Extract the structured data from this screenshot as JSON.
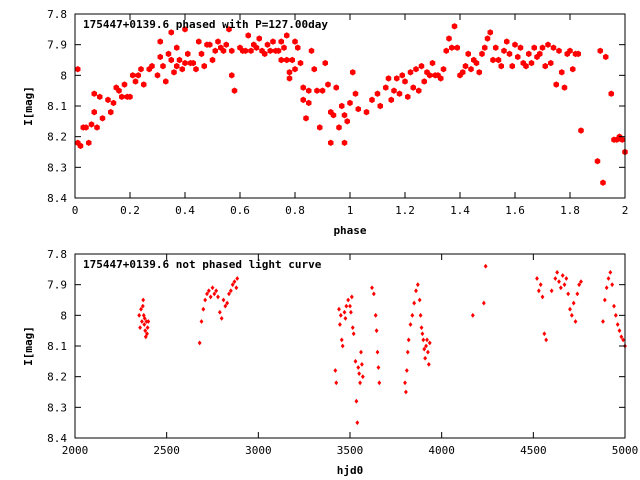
{
  "chart_data": [
    {
      "type": "scatter",
      "title": "175447+0139.6 phased with P=127.00day",
      "xlabel": "phase",
      "ylabel": "I[mag]",
      "xlim": [
        0,
        2
      ],
      "ylim": [
        7.8,
        8.4
      ],
      "y_inverted": true,
      "x_ticks": [
        "0",
        "0.2",
        "0.4",
        "0.6",
        "0.8",
        "1",
        "1.2",
        "1.4",
        "1.6",
        "1.8",
        "2"
      ],
      "y_ticks": [
        "7.8",
        "7.9",
        "8",
        "8.1",
        "8.2",
        "8.3",
        "8.4"
      ],
      "marker_color": "#ff0000",
      "marker": "filled-hexagon",
      "points": [
        [
          0.01,
          8.22
        ],
        [
          0.01,
          7.98
        ],
        [
          0.02,
          8.23
        ],
        [
          0.03,
          8.17
        ],
        [
          0.04,
          8.17
        ],
        [
          0.05,
          8.22
        ],
        [
          0.06,
          8.16
        ],
        [
          0.07,
          8.12
        ],
        [
          0.07,
          8.06
        ],
        [
          0.08,
          8.17
        ],
        [
          0.09,
          8.07
        ],
        [
          0.1,
          8.14
        ],
        [
          0.12,
          8.08
        ],
        [
          0.13,
          8.12
        ],
        [
          0.14,
          8.09
        ],
        [
          0.15,
          8.04
        ],
        [
          0.16,
          8.05
        ],
        [
          0.17,
          8.07
        ],
        [
          0.18,
          8.03
        ],
        [
          0.19,
          8.07
        ],
        [
          0.2,
          8.07
        ],
        [
          0.21,
          8.0
        ],
        [
          0.22,
          8.02
        ],
        [
          0.23,
          8.0
        ],
        [
          0.24,
          7.98
        ],
        [
          0.25,
          8.03
        ],
        [
          0.27,
          7.98
        ],
        [
          0.28,
          7.97
        ],
        [
          0.3,
          8.0
        ],
        [
          0.31,
          7.94
        ],
        [
          0.31,
          7.89
        ],
        [
          0.32,
          7.97
        ],
        [
          0.33,
          8.02
        ],
        [
          0.34,
          7.93
        ],
        [
          0.35,
          7.86
        ],
        [
          0.35,
          7.95
        ],
        [
          0.36,
          7.99
        ],
        [
          0.37,
          7.97
        ],
        [
          0.37,
          7.91
        ],
        [
          0.38,
          7.95
        ],
        [
          0.39,
          7.98
        ],
        [
          0.4,
          7.85
        ],
        [
          0.4,
          7.96
        ],
        [
          0.41,
          7.93
        ],
        [
          0.42,
          7.96
        ],
        [
          0.43,
          7.96
        ],
        [
          0.44,
          7.98
        ],
        [
          0.45,
          7.89
        ],
        [
          0.46,
          7.93
        ],
        [
          0.47,
          7.97
        ],
        [
          0.48,
          7.9
        ],
        [
          0.49,
          7.9
        ],
        [
          0.5,
          7.95
        ],
        [
          0.51,
          7.92
        ],
        [
          0.52,
          7.89
        ],
        [
          0.53,
          7.91
        ],
        [
          0.54,
          7.92
        ],
        [
          0.55,
          7.9
        ],
        [
          0.56,
          7.85
        ],
        [
          0.57,
          7.92
        ],
        [
          0.57,
          8.0
        ],
        [
          0.58,
          8.05
        ],
        [
          0.6,
          7.91
        ],
        [
          0.61,
          7.92
        ],
        [
          0.62,
          7.92
        ],
        [
          0.63,
          7.87
        ],
        [
          0.64,
          7.92
        ],
        [
          0.65,
          7.9
        ],
        [
          0.66,
          7.91
        ],
        [
          0.67,
          7.88
        ],
        [
          0.68,
          7.92
        ],
        [
          0.69,
          7.93
        ],
        [
          0.7,
          7.9
        ],
        [
          0.71,
          7.92
        ],
        [
          0.72,
          7.89
        ],
        [
          0.73,
          7.92
        ],
        [
          0.74,
          7.92
        ],
        [
          0.75,
          7.95
        ],
        [
          0.75,
          7.89
        ],
        [
          0.76,
          7.91
        ],
        [
          0.77,
          7.87
        ],
        [
          0.77,
          7.95
        ],
        [
          0.78,
          7.99
        ],
        [
          0.78,
          8.01
        ],
        [
          0.79,
          7.95
        ],
        [
          0.8,
          7.89
        ],
        [
          0.8,
          7.98
        ],
        [
          0.81,
          7.91
        ],
        [
          0.82,
          7.96
        ],
        [
          0.83,
          8.04
        ],
        [
          0.83,
          8.08
        ],
        [
          0.84,
          8.14
        ],
        [
          0.85,
          8.09
        ],
        [
          0.85,
          8.05
        ],
        [
          0.86,
          7.92
        ],
        [
          0.87,
          7.98
        ],
        [
          0.88,
          8.05
        ],
        [
          0.89,
          8.17
        ],
        [
          0.9,
          8.05
        ],
        [
          0.91,
          7.96
        ],
        [
          0.92,
          8.03
        ],
        [
          0.93,
          8.22
        ],
        [
          0.93,
          8.12
        ],
        [
          0.94,
          8.13
        ],
        [
          0.95,
          8.04
        ],
        [
          0.96,
          8.17
        ],
        [
          0.97,
          8.1
        ],
        [
          0.98,
          8.22
        ],
        [
          0.98,
          8.13
        ],
        [
          0.99,
          8.15
        ],
        [
          1.0,
          8.09
        ],
        [
          1.01,
          7.99
        ],
        [
          1.02,
          8.06
        ],
        [
          1.03,
          8.11
        ],
        [
          1.06,
          8.12
        ],
        [
          1.08,
          8.08
        ],
        [
          1.1,
          8.06
        ],
        [
          1.11,
          8.1
        ],
        [
          1.13,
          8.04
        ],
        [
          1.14,
          8.01
        ],
        [
          1.15,
          8.08
        ],
        [
          1.16,
          8.05
        ],
        [
          1.17,
          8.01
        ],
        [
          1.18,
          8.06
        ],
        [
          1.19,
          8.0
        ],
        [
          1.2,
          8.02
        ],
        [
          1.21,
          8.07
        ],
        [
          1.22,
          7.99
        ],
        [
          1.23,
          8.04
        ],
        [
          1.24,
          7.98
        ],
        [
          1.25,
          8.05
        ],
        [
          1.26,
          7.97
        ],
        [
          1.27,
          8.02
        ],
        [
          1.28,
          7.99
        ],
        [
          1.29,
          8.0
        ],
        [
          1.3,
          7.96
        ],
        [
          1.31,
          8.0
        ],
        [
          1.32,
          8.0
        ],
        [
          1.33,
          8.01
        ],
        [
          1.34,
          7.98
        ],
        [
          1.35,
          7.92
        ],
        [
          1.36,
          7.88
        ],
        [
          1.37,
          7.91
        ],
        [
          1.38,
          7.84
        ],
        [
          1.39,
          7.91
        ],
        [
          1.4,
          8.0
        ],
        [
          1.41,
          7.99
        ],
        [
          1.42,
          7.97
        ],
        [
          1.43,
          7.93
        ],
        [
          1.44,
          7.98
        ],
        [
          1.45,
          7.95
        ],
        [
          1.46,
          7.96
        ],
        [
          1.47,
          7.99
        ],
        [
          1.48,
          7.93
        ],
        [
          1.49,
          7.91
        ],
        [
          1.5,
          7.88
        ],
        [
          1.51,
          7.86
        ],
        [
          1.52,
          7.95
        ],
        [
          1.53,
          7.91
        ],
        [
          1.54,
          7.95
        ],
        [
          1.55,
          7.97
        ],
        [
          1.56,
          7.92
        ],
        [
          1.57,
          7.89
        ],
        [
          1.58,
          7.93
        ],
        [
          1.59,
          7.97
        ],
        [
          1.6,
          7.9
        ],
        [
          1.61,
          7.94
        ],
        [
          1.62,
          7.91
        ],
        [
          1.63,
          7.96
        ],
        [
          1.64,
          7.97
        ],
        [
          1.65,
          7.93
        ],
        [
          1.66,
          7.96
        ],
        [
          1.67,
          7.91
        ],
        [
          1.68,
          7.94
        ],
        [
          1.69,
          7.93
        ],
        [
          1.7,
          7.91
        ],
        [
          1.71,
          7.97
        ],
        [
          1.72,
          7.9
        ],
        [
          1.73,
          7.96
        ],
        [
          1.74,
          7.91
        ],
        [
          1.75,
          8.03
        ],
        [
          1.76,
          7.92
        ],
        [
          1.77,
          7.99
        ],
        [
          1.78,
          8.04
        ],
        [
          1.79,
          7.93
        ],
        [
          1.8,
          7.92
        ],
        [
          1.81,
          7.98
        ],
        [
          1.82,
          7.93
        ],
        [
          1.83,
          7.93
        ],
        [
          1.84,
          8.18
        ],
        [
          1.9,
          8.28
        ],
        [
          1.91,
          7.92
        ],
        [
          1.92,
          8.35
        ],
        [
          1.93,
          7.94
        ],
        [
          1.95,
          8.06
        ],
        [
          1.96,
          8.21
        ],
        [
          1.97,
          8.21
        ],
        [
          1.98,
          8.2
        ],
        [
          1.99,
          8.21
        ],
        [
          2.0,
          8.25
        ]
      ]
    },
    {
      "type": "scatter",
      "title": "175447+0139.6 not phased light curve",
      "xlabel": "hjd0",
      "ylabel": "I[mag]",
      "xlim": [
        2000,
        5000
      ],
      "ylim": [
        7.8,
        8.4
      ],
      "y_inverted": true,
      "x_ticks": [
        "2000",
        "2500",
        "3000",
        "3500",
        "4000",
        "4500",
        "5000"
      ],
      "y_ticks": [
        "7.8",
        "7.9",
        "8",
        "8.1",
        "8.2",
        "8.3",
        "8.4"
      ],
      "marker_color": "#ff0000",
      "marker": "small-diamond",
      "points": [
        [
          2350,
          8.0
        ],
        [
          2355,
          8.04
        ],
        [
          2360,
          7.98
        ],
        [
          2365,
          8.02
        ],
        [
          2370,
          7.97
        ],
        [
          2372,
          7.95
        ],
        [
          2375,
          8.0
        ],
        [
          2378,
          8.03
        ],
        [
          2380,
          8.01
        ],
        [
          2383,
          8.05
        ],
        [
          2386,
          8.07
        ],
        [
          2390,
          8.02
        ],
        [
          2393,
          8.06
        ],
        [
          2396,
          8.04
        ],
        [
          2400,
          8.02
        ],
        [
          2680,
          8.09
        ],
        [
          2690,
          8.02
        ],
        [
          2700,
          7.98
        ],
        [
          2710,
          7.95
        ],
        [
          2720,
          7.93
        ],
        [
          2730,
          7.92
        ],
        [
          2740,
          7.94
        ],
        [
          2750,
          7.91
        ],
        [
          2760,
          7.93
        ],
        [
          2770,
          7.92
        ],
        [
          2780,
          7.94
        ],
        [
          2790,
          7.99
        ],
        [
          2800,
          8.01
        ],
        [
          2810,
          7.95
        ],
        [
          2820,
          7.97
        ],
        [
          2830,
          7.96
        ],
        [
          2840,
          7.93
        ],
        [
          2850,
          7.92
        ],
        [
          2860,
          7.9
        ],
        [
          2870,
          7.89
        ],
        [
          2880,
          7.91
        ],
        [
          2885,
          7.88
        ],
        [
          3420,
          8.18
        ],
        [
          3425,
          8.22
        ],
        [
          3440,
          7.98
        ],
        [
          3445,
          8.03
        ],
        [
          3450,
          8.0
        ],
        [
          3455,
          8.08
        ],
        [
          3460,
          8.1
        ],
        [
          3470,
          7.99
        ],
        [
          3475,
          8.01
        ],
        [
          3480,
          7.97
        ],
        [
          3490,
          7.95
        ],
        [
          3500,
          7.97
        ],
        [
          3505,
          7.99
        ],
        [
          3510,
          7.94
        ],
        [
          3515,
          8.04
        ],
        [
          3520,
          8.06
        ],
        [
          3530,
          8.15
        ],
        [
          3535,
          8.28
        ],
        [
          3540,
          8.35
        ],
        [
          3545,
          8.17
        ],
        [
          3550,
          8.19
        ],
        [
          3555,
          8.22
        ],
        [
          3560,
          8.12
        ],
        [
          3565,
          8.16
        ],
        [
          3570,
          8.2
        ],
        [
          3620,
          7.91
        ],
        [
          3630,
          7.93
        ],
        [
          3640,
          8.0
        ],
        [
          3645,
          8.05
        ],
        [
          3650,
          8.12
        ],
        [
          3655,
          8.17
        ],
        [
          3660,
          8.22
        ],
        [
          3800,
          8.22
        ],
        [
          3805,
          8.25
        ],
        [
          3810,
          8.18
        ],
        [
          3815,
          8.12
        ],
        [
          3820,
          8.08
        ],
        [
          3830,
          8.03
        ],
        [
          3840,
          8.0
        ],
        [
          3850,
          7.96
        ],
        [
          3860,
          7.92
        ],
        [
          3870,
          7.9
        ],
        [
          3880,
          7.95
        ],
        [
          3885,
          8.0
        ],
        [
          3890,
          8.04
        ],
        [
          3895,
          8.06
        ],
        [
          3900,
          8.08
        ],
        [
          3905,
          8.11
        ],
        [
          3910,
          8.14
        ],
        [
          3915,
          8.1
        ],
        [
          3920,
          8.08
        ],
        [
          3925,
          8.12
        ],
        [
          3930,
          8.16
        ],
        [
          3935,
          8.09
        ],
        [
          4170,
          8.0
        ],
        [
          4230,
          7.96
        ],
        [
          4240,
          7.84
        ],
        [
          4520,
          7.88
        ],
        [
          4530,
          7.92
        ],
        [
          4540,
          7.9
        ],
        [
          4550,
          7.94
        ],
        [
          4560,
          8.06
        ],
        [
          4570,
          8.08
        ],
        [
          4600,
          7.92
        ],
        [
          4620,
          7.88
        ],
        [
          4630,
          7.86
        ],
        [
          4640,
          7.89
        ],
        [
          4650,
          7.91
        ],
        [
          4660,
          7.87
        ],
        [
          4670,
          7.9
        ],
        [
          4680,
          7.88
        ],
        [
          4690,
          7.93
        ],
        [
          4700,
          7.98
        ],
        [
          4710,
          8.0
        ],
        [
          4720,
          7.96
        ],
        [
          4730,
          8.02
        ],
        [
          4740,
          7.93
        ],
        [
          4750,
          7.9
        ],
        [
          4760,
          7.89
        ],
        [
          4880,
          8.02
        ],
        [
          4890,
          7.95
        ],
        [
          4900,
          7.91
        ],
        [
          4910,
          7.88
        ],
        [
          4920,
          7.86
        ],
        [
          4930,
          7.9
        ],
        [
          4940,
          7.97
        ],
        [
          4950,
          8.0
        ],
        [
          4960,
          8.03
        ],
        [
          4970,
          8.05
        ],
        [
          4980,
          8.07
        ],
        [
          4990,
          8.08
        ],
        [
          5000,
          8.1
        ]
      ]
    }
  ]
}
